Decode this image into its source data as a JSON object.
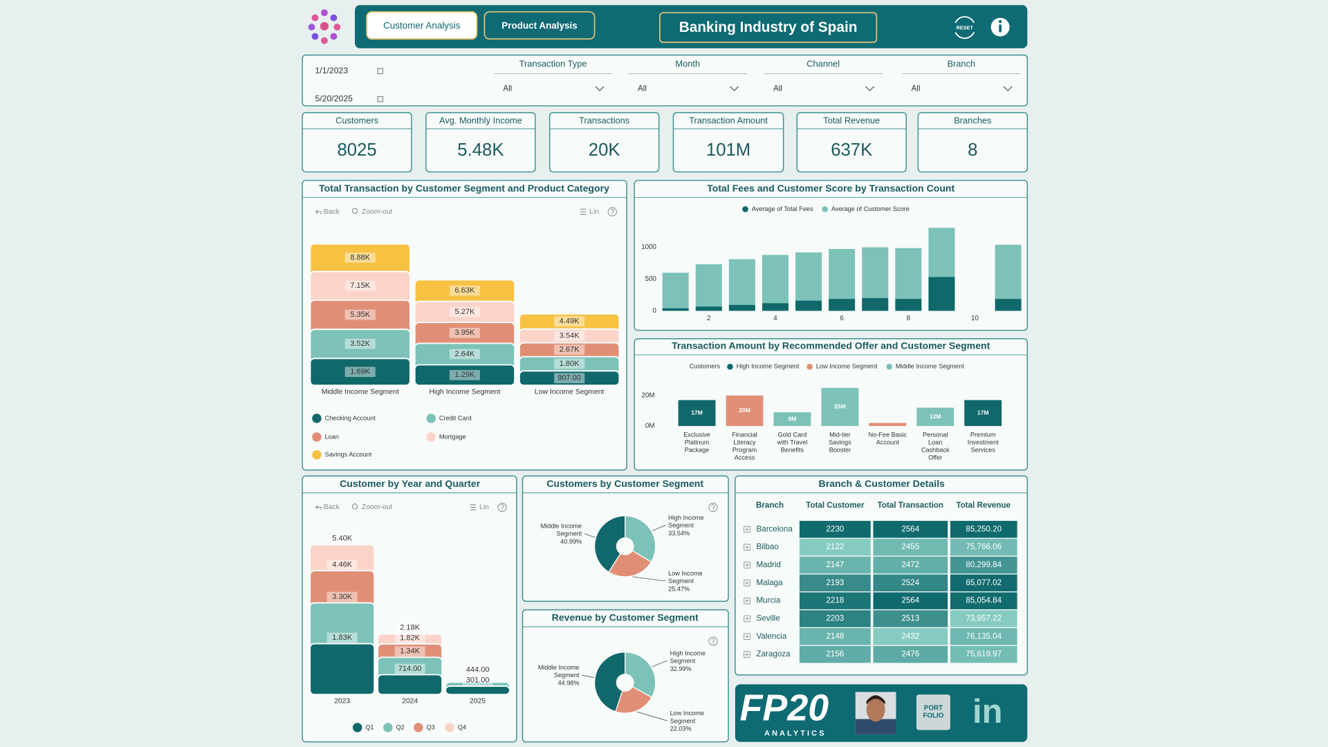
{
  "header": {
    "buttons": [
      "Customer Analysis",
      "Product Analysis"
    ],
    "title": "Banking Industry of Spain",
    "reset": "RESET"
  },
  "filters": {
    "date_start": "1/1/2023",
    "date_end": "5/20/2025",
    "dropdowns": [
      {
        "label": "Transaction Type",
        "value": "All"
      },
      {
        "label": "Month",
        "value": "All"
      },
      {
        "label": "Channel",
        "value": "All"
      },
      {
        "label": "Branch",
        "value": "All"
      }
    ]
  },
  "kpis": [
    {
      "label": "Customers",
      "value": "8025"
    },
    {
      "label": "Avg. Monthly Income",
      "value": "5.48K"
    },
    {
      "label": "Transactions",
      "value": "20K"
    },
    {
      "label": "Transaction Amount",
      "value": "101M"
    },
    {
      "label": "Total Revenue",
      "value": "637K"
    },
    {
      "label": "Branches",
      "value": "8"
    }
  ],
  "chart_data": [
    {
      "type": "bar",
      "barmode": "overlay",
      "title": "Total Transaction by Customer Segment and Product Category",
      "toolbar": [
        "Back",
        "Zoom-out",
        "Lin"
      ],
      "categories": [
        "Middle Income Segment",
        "High Income Segment",
        "Low Income Segment"
      ],
      "series": [
        {
          "name": "Checking Account",
          "color": "#11686b",
          "values": [
            1690,
            1290,
            907
          ],
          "value_labels": [
            "1.69K",
            "1.29K",
            "907.00"
          ]
        },
        {
          "name": "Credit Card",
          "color": "#7cc2b8",
          "values": [
            3520,
            2640,
            1800
          ],
          "value_labels": [
            "3.52K",
            "2.64K",
            "1.80K"
          ]
        },
        {
          "name": "Loan",
          "color": "#e08f76",
          "values": [
            5350,
            3950,
            2670
          ],
          "value_labels": [
            "5.35K",
            "3.95K",
            "2.67K"
          ]
        },
        {
          "name": "Mortgage",
          "color": "#fbd3c9",
          "values": [
            7150,
            5270,
            3540
          ],
          "value_labels": [
            "7.15K",
            "5.27K",
            "3.54K"
          ]
        },
        {
          "name": "Savings Account",
          "color": "#f7c142",
          "values": [
            8880,
            6630,
            4490
          ],
          "value_labels": [
            "8.88K",
            "6.63K",
            "4.49K"
          ]
        }
      ]
    },
    {
      "type": "bar",
      "barmode": "overlay",
      "title": "Total Fees and Customer Score by Transaction Count",
      "x": [
        1,
        2,
        3,
        4,
        5,
        6,
        7,
        8,
        9,
        11
      ],
      "xlim": [
        0.5,
        11.5
      ],
      "xticks": [
        2,
        4,
        6,
        8,
        10
      ],
      "ylim": [
        0,
        1400
      ],
      "yticks": [
        0,
        500,
        1000
      ],
      "series": [
        {
          "name": "Average of Total Fees",
          "color": "#11686b",
          "values": [
            40,
            67,
            93,
            120,
            160,
            187,
            200,
            187,
            533,
            187
          ]
        },
        {
          "name": "Average of Customer Score",
          "color": "#7cc2b8",
          "values": [
            600,
            733,
            813,
            880,
            920,
            973,
            1000,
            987,
            1307,
            1040
          ]
        }
      ]
    },
    {
      "type": "bar",
      "title": "Transaction Amount by Recommended Offer and Customer Segment",
      "legend_title": "Customers",
      "categories": [
        "Exclusive Platinum Package",
        "Financial Literacy Program Access",
        "Gold Card with Travel Benefits",
        "Mid-tier Savings Booster",
        "No-Fee Basic Account",
        "Personal Loan Cashback Offer",
        "Premium Investment Services"
      ],
      "ylim": [
        0,
        30
      ],
      "yticks": [
        {
          "value": 0,
          "label": "0M"
        },
        {
          "value": 20,
          "label": "20M"
        }
      ],
      "series": [
        {
          "name": "High Income Segment",
          "color": "#11686b",
          "values": [
            17,
            null,
            null,
            null,
            null,
            null,
            17
          ],
          "value_labels": [
            "17M",
            null,
            null,
            null,
            null,
            null,
            "17M"
          ]
        },
        {
          "name": "Low Income Segment",
          "color": "#e08f76",
          "values": [
            null,
            20,
            null,
            null,
            2,
            null,
            null
          ],
          "value_labels": [
            null,
            "20M",
            null,
            null,
            null,
            null,
            null
          ]
        },
        {
          "name": "Middle Income Segment",
          "color": "#7cc2b8",
          "values": [
            null,
            null,
            9,
            25,
            null,
            12,
            null
          ],
          "value_labels": [
            null,
            null,
            "9M",
            "25M",
            null,
            "12M",
            null
          ]
        }
      ]
    },
    {
      "type": "bar",
      "barmode": "overlay",
      "title": "Customer by Year and Quarter",
      "toolbar": [
        "Back",
        "Zoom-out",
        "Lin"
      ],
      "categories": [
        "2023",
        "2024",
        "2025"
      ],
      "series": [
        {
          "name": "Q1",
          "color": "#11686b",
          "values": [
            1830,
            714,
            301
          ],
          "value_labels": [
            "1.83K",
            "714.00",
            "301.00"
          ]
        },
        {
          "name": "Q2",
          "color": "#7cc2b8",
          "values": [
            3300,
            1340,
            444
          ],
          "value_labels": [
            "3.30K",
            "1.34K",
            "444.00"
          ]
        },
        {
          "name": "Q3",
          "color": "#e08f76",
          "values": [
            4460,
            1820,
            null
          ],
          "value_labels": [
            "4.46K",
            "1.82K",
            null
          ]
        },
        {
          "name": "Q4",
          "color": "#fbd3c9",
          "values": [
            5400,
            2180,
            null
          ],
          "value_labels": [
            "5.40K",
            "2.18K",
            null
          ]
        }
      ]
    },
    {
      "type": "donut",
      "title": "Customers by Customer Segment",
      "categories": [
        "High Income Segment",
        "Low Income Segment",
        "Middle Income Segment"
      ],
      "values": [
        33.54,
        25.47,
        40.99
      ],
      "value_labels": [
        "33.54%",
        "25.47%",
        "40.99%"
      ],
      "colors": [
        "#7cc2b8",
        "#e08f76",
        "#11686b"
      ]
    },
    {
      "type": "donut",
      "title": "Revenue by Customer Segment",
      "categories": [
        "High Income Segment",
        "Low Income Segment",
        "Middle Income Segment"
      ],
      "values": [
        32.99,
        22.03,
        44.98
      ],
      "value_labels": [
        "32.99%",
        "22.03%",
        "44.98%"
      ],
      "colors": [
        "#7cc2b8",
        "#e08f76",
        "#11686b"
      ]
    }
  ],
  "table": {
    "title": "Branch & Customer Details",
    "columns": [
      "Branch",
      "Total Customer",
      "Total Transaction",
      "Total Revenue"
    ],
    "rows": [
      [
        "Barcelona",
        2230,
        2564,
        "85,250.20"
      ],
      [
        "Bilbao",
        2122,
        2455,
        "75,766.06"
      ],
      [
        "Madrid",
        2147,
        2472,
        "80,299.84"
      ],
      [
        "Malaga",
        2193,
        2524,
        "85,077.02"
      ],
      [
        "Murcia",
        2218,
        2564,
        "85,054.84"
      ],
      [
        "Seville",
        2203,
        2513,
        "73,957.22"
      ],
      [
        "Valencia",
        2148,
        2432,
        "76,135.04"
      ],
      [
        "Zaragoza",
        2156,
        2476,
        "75,619.97"
      ]
    ]
  },
  "footer": {
    "brand": "FP20",
    "brand_sub": "ANALYTICS",
    "portfolio": "PORT FOLIO",
    "linkedin": "in"
  }
}
